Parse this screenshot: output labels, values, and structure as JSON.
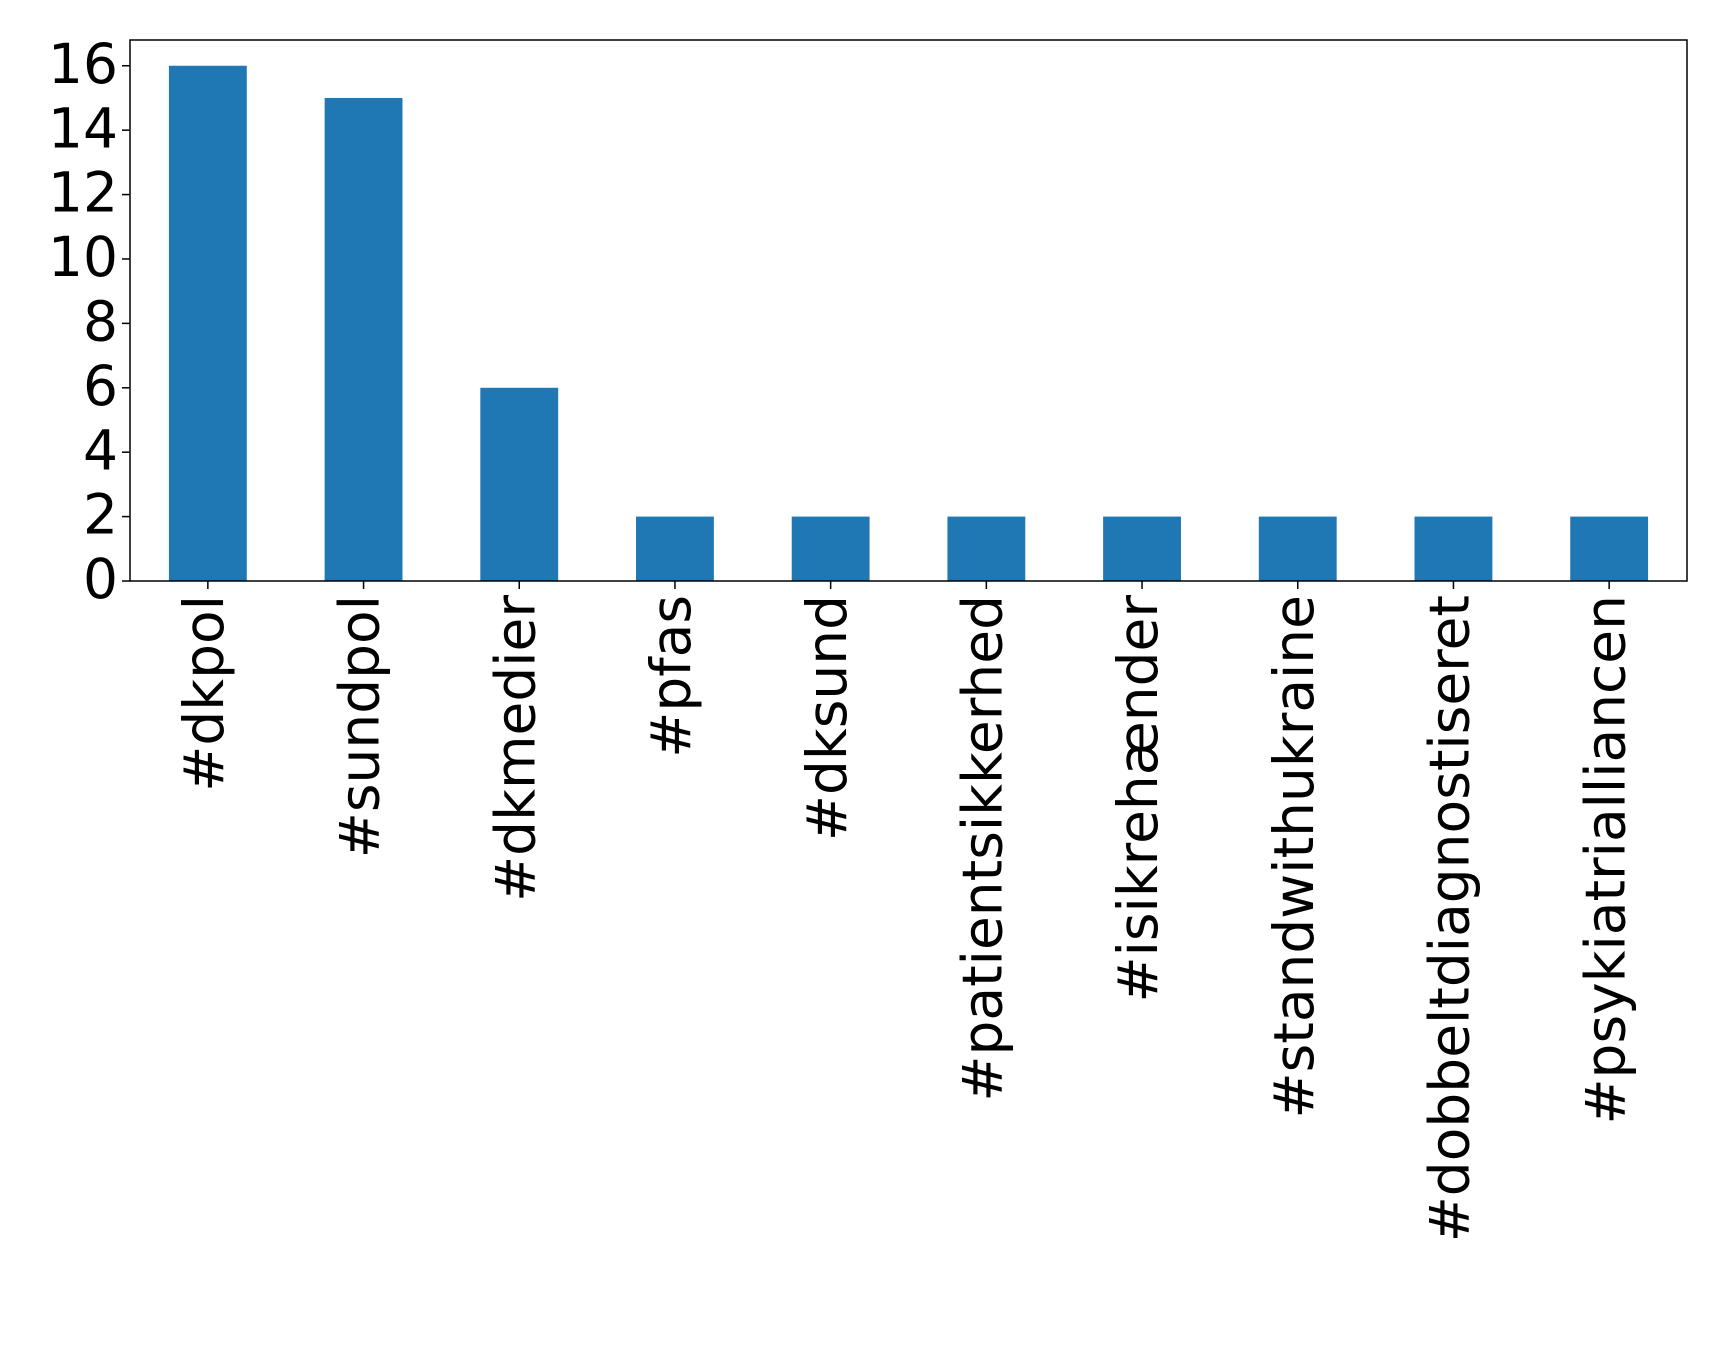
{
  "chart_data": {
    "type": "bar",
    "categories": [
      "#dkpol",
      "#sundpol",
      "#dkmedier",
      "#pfas",
      "#dksund",
      "#patientsikkerhed",
      "#isikrehænder",
      "#standwithukraine",
      "#dobbeltdiagnostiseret",
      "#psykiatrialliancen"
    ],
    "values": [
      16,
      15,
      6,
      2,
      2,
      2,
      2,
      2,
      2,
      2
    ],
    "color": "#1f77b4",
    "ylim": [
      0,
      16.8
    ],
    "yticks": [
      0,
      2,
      4,
      6,
      8,
      10,
      12,
      14,
      16
    ],
    "grid": false
  }
}
